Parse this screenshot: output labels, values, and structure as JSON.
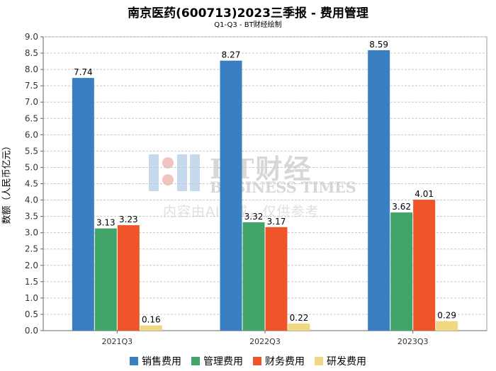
{
  "chart_data": {
    "type": "bar",
    "title": "南京医药(600713)2023三季报 - 费用管理",
    "subtitle": "Q1-Q3 - BT财经绘制",
    "xlabel": "",
    "ylabel": "数额（人民币亿元）",
    "categories": [
      "2021Q3",
      "2022Q3",
      "2023Q3"
    ],
    "ylim": [
      0,
      9
    ],
    "ytick_step": 0.5,
    "yticks": [
      "0.0",
      "0.5",
      "1.0",
      "1.5",
      "2.0",
      "2.5",
      "3.0",
      "3.5",
      "4.0",
      "4.5",
      "5.0",
      "5.5",
      "6.0",
      "6.5",
      "7.0",
      "7.5",
      "8.0",
      "8.5",
      "9.0"
    ],
    "grid": true,
    "legend_position": "bottom",
    "series": [
      {
        "name": "销售费用",
        "color": "#3a7fc1",
        "values": [
          7.74,
          8.27,
          8.59
        ],
        "labels": [
          "7.74",
          "8.27",
          "8.59"
        ]
      },
      {
        "name": "管理费用",
        "color": "#43a46a",
        "values": [
          3.13,
          3.32,
          3.62
        ],
        "labels": [
          "3.13",
          "3.32",
          "3.62"
        ]
      },
      {
        "name": "财务费用",
        "color": "#ef5528",
        "values": [
          3.23,
          3.17,
          4.01
        ],
        "labels": [
          "3.23",
          "3.17",
          "4.01"
        ]
      },
      {
        "name": "研发费用",
        "color": "#f0d882",
        "values": [
          0.16,
          0.22,
          0.29
        ],
        "labels": [
          "0.16",
          "0.22",
          "0.29"
        ]
      }
    ]
  },
  "watermark": {
    "brand": "BT财经",
    "brand_en": "BUSINESS TIMES",
    "note": "内容由AI生成，仅供参考"
  }
}
